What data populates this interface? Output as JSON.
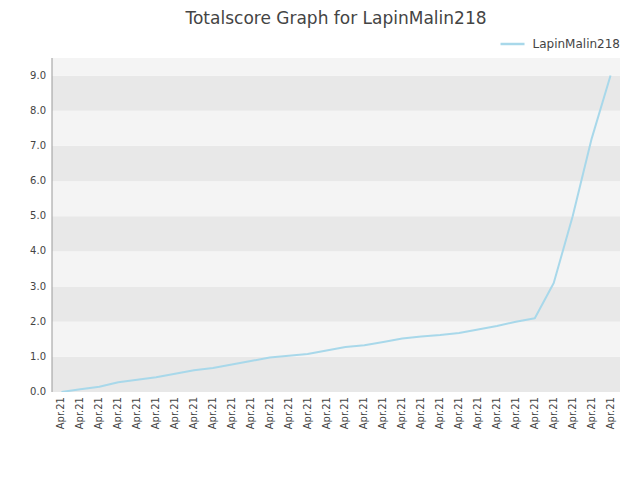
{
  "chart_data": {
    "type": "line",
    "title": "Totalscore Graph for LapinMalin218",
    "categories": [
      "Apr.21",
      "Apr.21",
      "Apr.21",
      "Apr.21",
      "Apr.21",
      "Apr.21",
      "Apr.21",
      "Apr.21",
      "Apr.21",
      "Apr.21",
      "Apr.21",
      "Apr.21",
      "Apr.21",
      "Apr.21",
      "Apr.21",
      "Apr.21",
      "Apr.21",
      "Apr.21",
      "Apr.21",
      "Apr.21",
      "Apr.21",
      "Apr.21",
      "Apr.21",
      "Apr.21",
      "Apr.21",
      "Apr.21",
      "Apr.21",
      "Apr.21",
      "Apr.21",
      "Apr.21"
    ],
    "series": [
      {
        "name": "LapinMalin218",
        "color": "#a8d8ea",
        "values": [
          0.0,
          0.08,
          0.15,
          0.28,
          0.35,
          0.42,
          0.52,
          0.62,
          0.68,
          0.78,
          0.88,
          0.98,
          1.03,
          1.08,
          1.18,
          1.28,
          1.33,
          1.42,
          1.52,
          1.58,
          1.62,
          1.68,
          1.78,
          1.88,
          2.0,
          2.1,
          3.1,
          5.0,
          7.2,
          9.0
        ]
      }
    ],
    "ylim": [
      0.0,
      9.5
    ],
    "yticks": [
      {
        "value": 0.0,
        "label": "0.0"
      },
      {
        "value": 1.0,
        "label": "1.0"
      },
      {
        "value": 2.0,
        "label": "2.0"
      },
      {
        "value": 3.0,
        "label": "3.0"
      },
      {
        "value": 4.0,
        "label": "4.0"
      },
      {
        "value": 5.0,
        "label": "5.0"
      },
      {
        "value": 6.0,
        "label": "6.0"
      },
      {
        "value": 7.0,
        "label": "7.0"
      },
      {
        "value": 8.0,
        "label": "8.0"
      },
      {
        "value": 9.0,
        "label": "9.0"
      }
    ],
    "grid": true,
    "legend": "upper-right"
  }
}
